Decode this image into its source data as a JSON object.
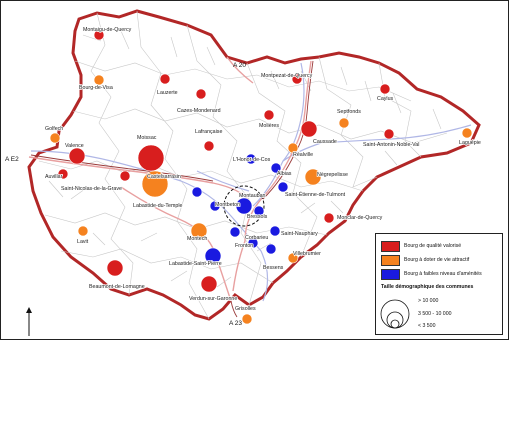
{
  "roads": {
    "e2": "A E2",
    "a20": "A 20",
    "a23": "A 23"
  },
  "colors": {
    "red": "#d81e1e",
    "orange": "#f5821f",
    "blue": "#1a1ae0",
    "border": "#b22727",
    "road": "#e8a0a0",
    "river": "#b0b7e6"
  },
  "towns": [
    {
      "name": "Montaigu-de-Quercy",
      "cat": "red",
      "size": "small"
    },
    {
      "name": "Bourg-de-Visa",
      "cat": "orange",
      "size": "small"
    },
    {
      "name": "Lauzerte",
      "cat": "red",
      "size": "small"
    },
    {
      "name": "Cazes-Mondenard",
      "cat": "red",
      "size": "small"
    },
    {
      "name": "Montpezat-de-Quercy",
      "cat": "red",
      "size": "small"
    },
    {
      "name": "Caylus",
      "cat": "red",
      "size": "small"
    },
    {
      "name": "Septfonds",
      "cat": "orange",
      "size": "small"
    },
    {
      "name": "Molières",
      "cat": "red",
      "size": "small"
    },
    {
      "name": "Caussade",
      "cat": "red",
      "size": "medium"
    },
    {
      "name": "Saint-Antonin-Noble-Val",
      "cat": "red",
      "size": "small"
    },
    {
      "name": "Laguépie",
      "cat": "orange",
      "size": "small"
    },
    {
      "name": "Golfech",
      "cat": "orange",
      "size": "small"
    },
    {
      "name": "Valence",
      "cat": "red",
      "size": "medium"
    },
    {
      "name": "Moissac",
      "cat": "red",
      "size": "large"
    },
    {
      "name": "Lafrançaise",
      "cat": "red",
      "size": "small"
    },
    {
      "name": "Auvillar",
      "cat": "red",
      "size": "small"
    },
    {
      "name": "Castelsarrasin",
      "cat": "orange",
      "size": "large"
    },
    {
      "name": "Saint-Nicolas-de-la-Grave",
      "cat": "red",
      "size": "small"
    },
    {
      "name": "Labastide-du-Temple",
      "cat": "blue",
      "size": "small"
    },
    {
      "name": "L'Honor-de-Cos",
      "cat": "blue",
      "size": "small"
    },
    {
      "name": "Albias",
      "cat": "blue",
      "size": "small"
    },
    {
      "name": "Réalville",
      "cat": "orange",
      "size": "small"
    },
    {
      "name": "Nègrepelisse",
      "cat": "orange",
      "size": "medium"
    },
    {
      "name": "Saint-Étienne-de-Tulmont",
      "cat": "blue",
      "size": "small"
    },
    {
      "name": "Montbeton",
      "cat": "blue",
      "size": "small"
    },
    {
      "name": "Bressols",
      "cat": "blue",
      "size": "small"
    },
    {
      "name": "Corbarieu",
      "cat": "blue",
      "size": "small"
    },
    {
      "name": "Monclar-de-Quercy",
      "cat": "red",
      "size": "small"
    },
    {
      "name": "Saint-Nauphary",
      "cat": "blue",
      "size": "small"
    },
    {
      "name": "Lavit",
      "cat": "orange",
      "size": "small"
    },
    {
      "name": "Montech",
      "cat": "orange",
      "size": "medium"
    },
    {
      "name": "Villebrumier",
      "cat": "orange",
      "size": "small"
    },
    {
      "name": "Labastide-Saint-Pierre",
      "cat": "blue",
      "size": "medium"
    },
    {
      "name": "Beaumont-de-Lomagne",
      "cat": "red",
      "size": "medium"
    },
    {
      "name": "Verdun-sur-Garonne",
      "cat": "red",
      "size": "medium"
    },
    {
      "name": "Grisolles",
      "cat": "orange",
      "size": "small"
    },
    {
      "name": "Bessens",
      "cat": "blue",
      "size": "small"
    },
    {
      "name": "Montauban",
      "cat": "blue",
      "size": "medium"
    },
    {
      "name": "Fronton",
      "cat": "blue",
      "size": "small"
    }
  ],
  "legend": {
    "categories": [
      {
        "label": "Bourg de qualité valorisé",
        "color": "#d81e1e"
      },
      {
        "label": "Bourg à doter de vie attractif",
        "color": "#f5821f"
      },
      {
        "label": "Bourg à faibles niveau d'aménités",
        "color": "#1a1ae0"
      }
    ],
    "size_title": "Taille démographique des communes",
    "sizes": [
      "> 10 000",
      "3 500 - 10 000",
      "< 3 500"
    ]
  }
}
